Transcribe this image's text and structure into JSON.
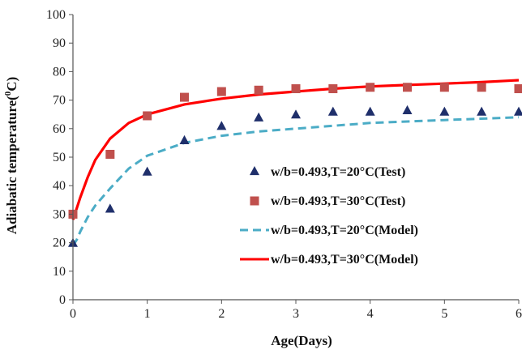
{
  "chart_data": {
    "type": "scatter",
    "title": "",
    "xlabel": "Age(Days)",
    "ylabel_main": "Adiabatic temperature(",
    "ylabel_sup": "0",
    "ylabel_end": "C)",
    "xlim": [
      0,
      6
    ],
    "ylim": [
      0,
      100
    ],
    "x_ticks": [
      "0",
      "1",
      "2",
      "3",
      "4",
      "5",
      "6"
    ],
    "y_ticks": [
      "0",
      "10",
      "20",
      "30",
      "40",
      "50",
      "60",
      "70",
      "80",
      "90",
      "100"
    ],
    "grid": false,
    "legend_position": "center-right",
    "series": [
      {
        "name": "w/b=0.493,T=20°C(Test)",
        "kind": "markers",
        "marker": "triangle",
        "color": "#1f2f6b",
        "x": [
          0,
          0.5,
          1,
          1.5,
          2,
          2.5,
          3,
          3.5,
          4,
          4.5,
          5,
          5.5,
          6
        ],
        "y": [
          20,
          32,
          45,
          56,
          61,
          64,
          65,
          66,
          66,
          66.5,
          66,
          66,
          66
        ]
      },
      {
        "name": "w/b=0.493,T=30°C(Test)",
        "kind": "markers",
        "marker": "square",
        "color": "#c0504d",
        "x": [
          0,
          0.5,
          1,
          1.5,
          2,
          2.5,
          3,
          3.5,
          4,
          4.5,
          5,
          5.5,
          6
        ],
        "y": [
          30,
          51,
          64.5,
          71,
          73,
          73.5,
          74,
          74,
          74.5,
          74.5,
          74.5,
          74.5,
          74
        ]
      },
      {
        "name": "w/b=0.493,T=20°C(Model)",
        "kind": "line",
        "dash": true,
        "color": "#4bacc6",
        "x": [
          0,
          0.05,
          0.1,
          0.2,
          0.3,
          0.5,
          0.75,
          1,
          1.5,
          2,
          2.5,
          3,
          3.5,
          4,
          4.5,
          5,
          5.5,
          6
        ],
        "y": [
          19,
          21,
          24,
          29,
          33,
          39,
          46,
          50.5,
          55,
          57.5,
          59,
          60,
          61,
          62,
          62.5,
          63,
          63.5,
          64
        ]
      },
      {
        "name": "w/b=0.493,T=30°C(Model)",
        "kind": "line",
        "dash": false,
        "color": "#ff0000",
        "x": [
          0,
          0.05,
          0.1,
          0.2,
          0.3,
          0.5,
          0.75,
          1,
          1.5,
          2,
          2.5,
          3,
          3.5,
          4,
          4.5,
          5,
          5.5,
          6
        ],
        "y": [
          28,
          32,
          36,
          43,
          49,
          56.5,
          62,
          65,
          68.5,
          70.5,
          72,
          73,
          74,
          74.8,
          75.3,
          75.8,
          76.3,
          77
        ]
      }
    ]
  }
}
